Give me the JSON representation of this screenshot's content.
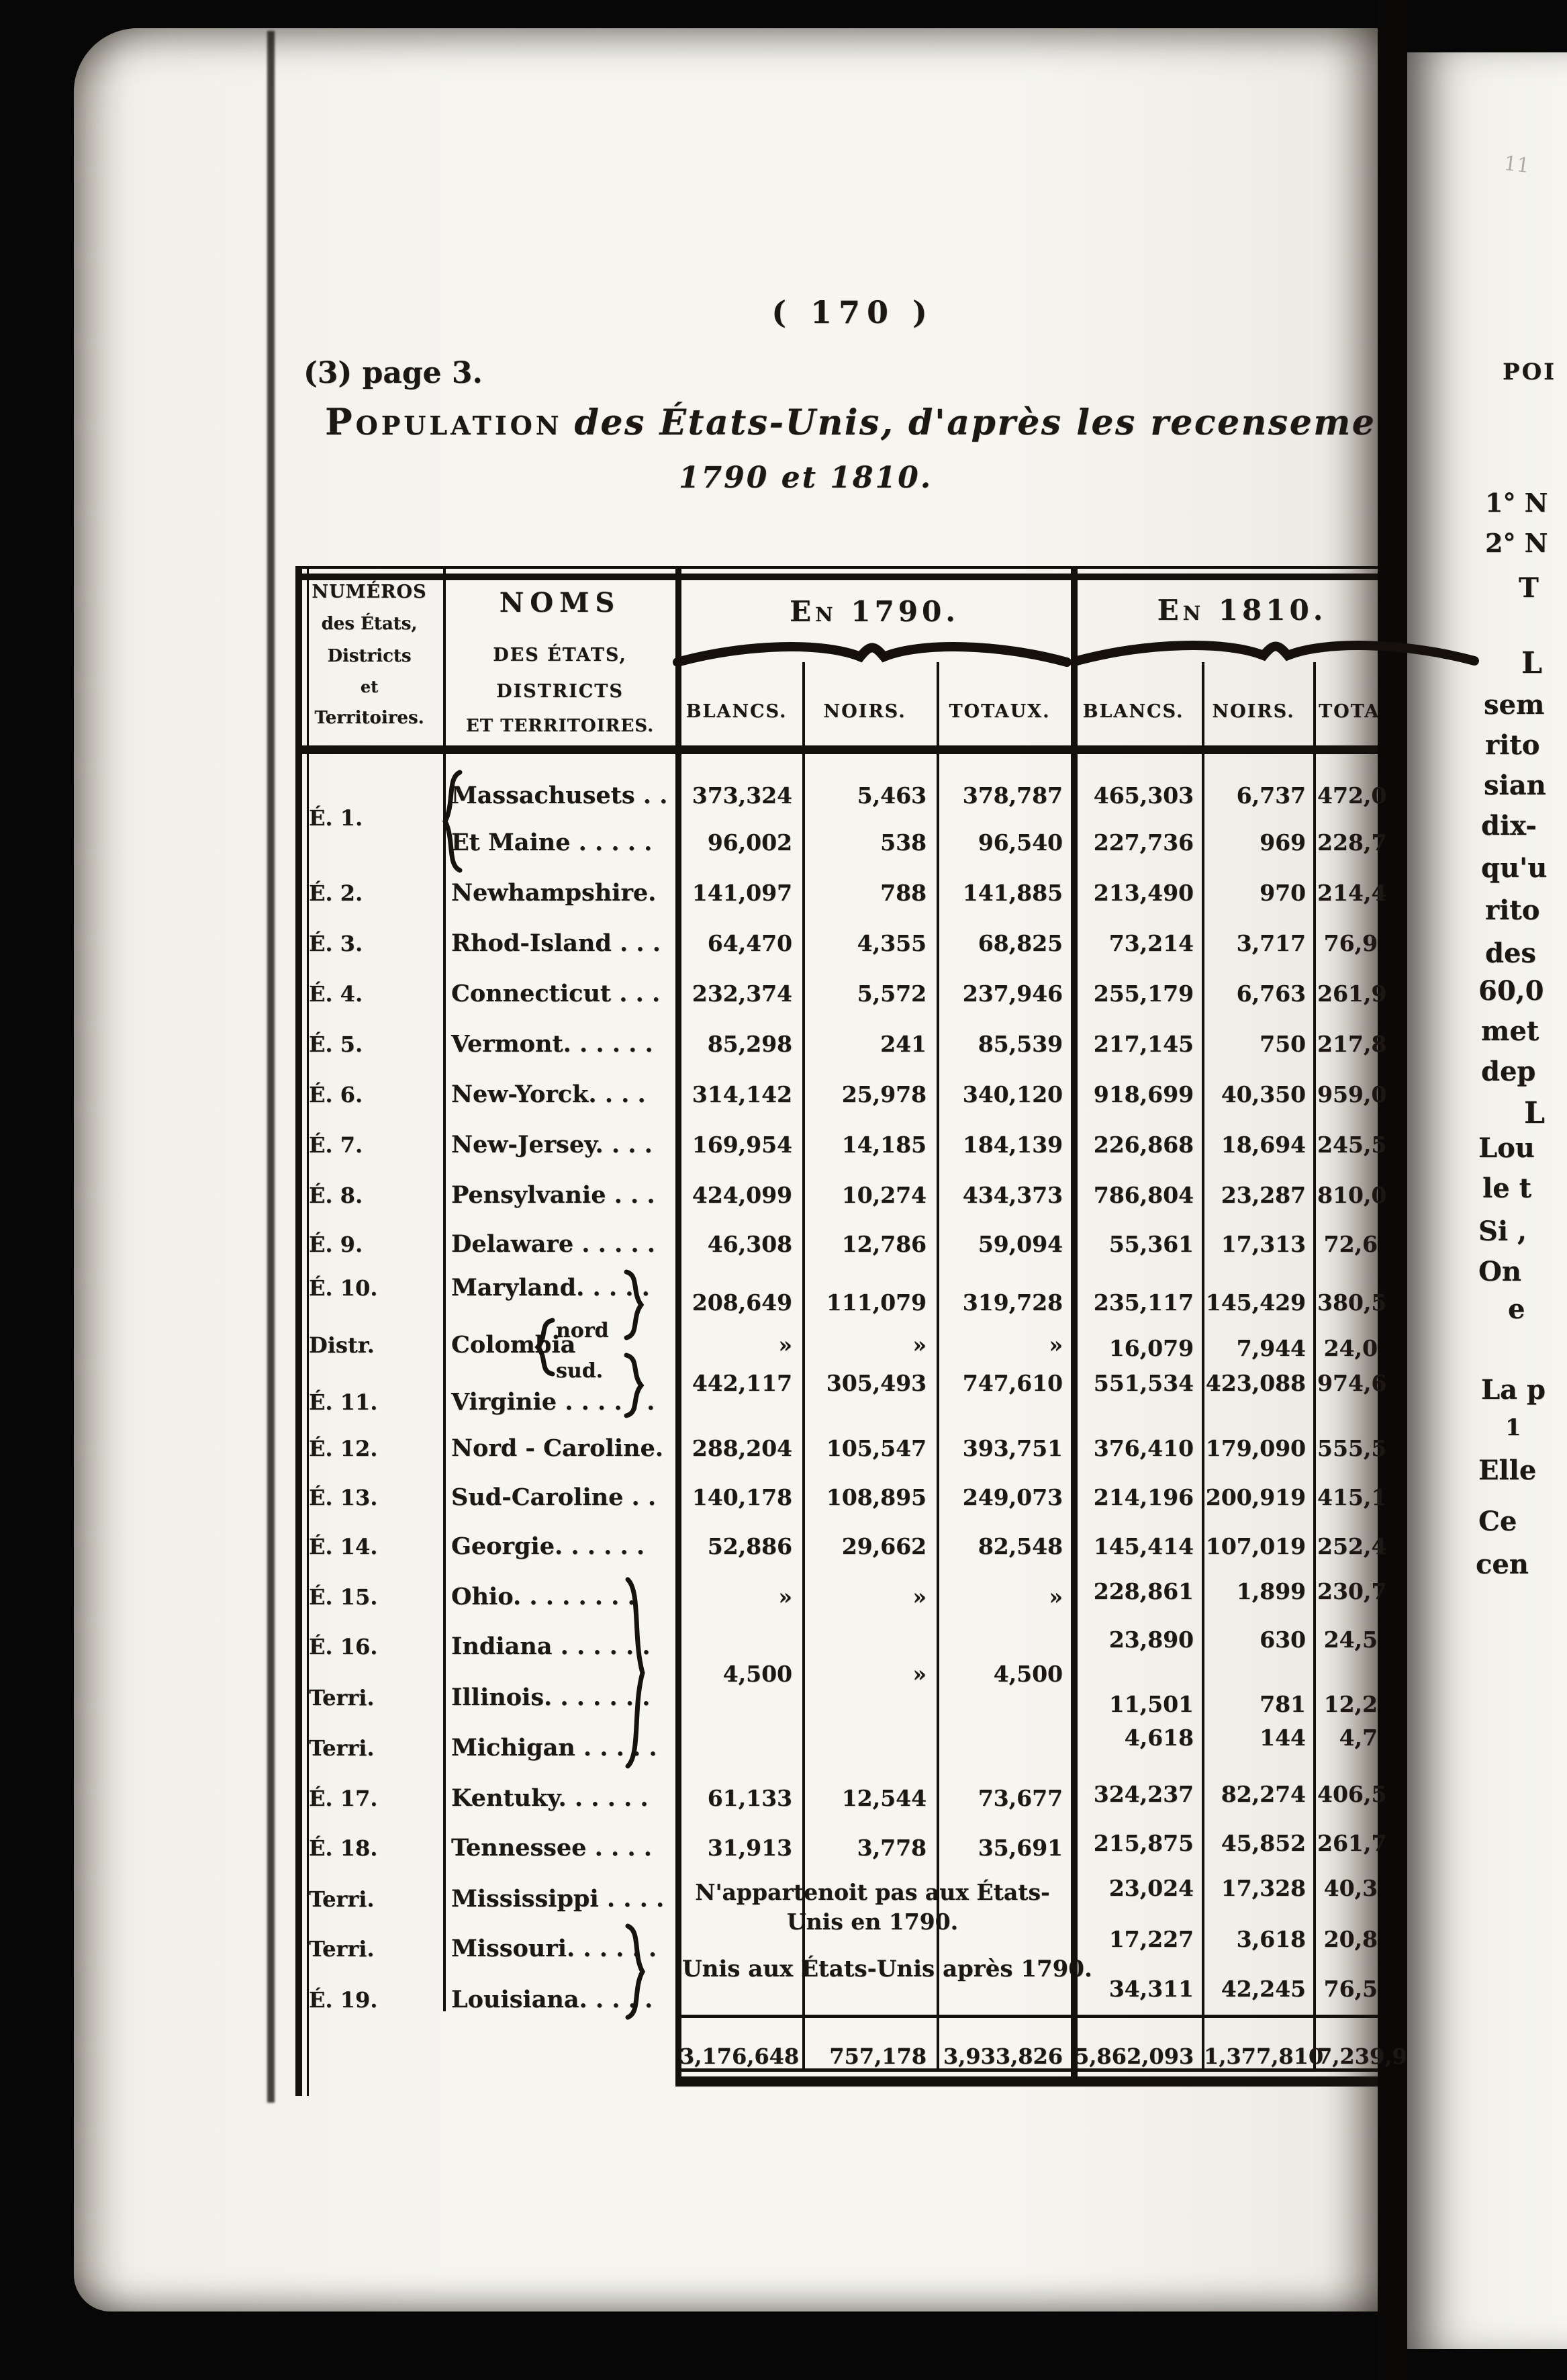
{
  "page_header": {
    "page_number": "( 170 )",
    "note": "(3) page 3.",
    "title_lead": "Population",
    "title_rest": "des États-Unis, d'après les recensements d'octobre",
    "title_line2": "1790 et 1810."
  },
  "table": {
    "col_headers": {
      "numeros_lines": [
        "NUMÉROS",
        "des États,",
        "Districts",
        "et",
        "Territoires."
      ],
      "noms_lines": [
        "NOMS",
        "DES ÉTATS,",
        "DISTRICTS",
        "ET TERRITOIRES."
      ],
      "group_1790": "En 1790.",
      "group_1810": "En 1810.",
      "sub_blancs_1790": "BLANCS.",
      "sub_noirs_1790": "NOIRS.",
      "sub_totaux_1790": "TOTAUX.",
      "sub_blancs_1810": "BLANCS.",
      "sub_noirs_1810": "NOIRS.",
      "sub_totaux_1810": "TOTAUX."
    },
    "rows": [
      {
        "num": "É. 1.",
        "name": "Massachusets . .",
        "b90": "373,324",
        "n90": "5,463",
        "t90": "378,787",
        "b10": "465,303",
        "n10": "6,737",
        "t10": "472,0"
      },
      {
        "num": "",
        "name": "Et Maine . . . . .",
        "b90": "96,002",
        "n90": "538",
        "t90": "96,540",
        "b10": "227,736",
        "n10": "969",
        "t10": "228,7"
      },
      {
        "num": "É. 2.",
        "name": "Newhampshire.",
        "b90": "141,097",
        "n90": "788",
        "t90": "141,885",
        "b10": "213,490",
        "n10": "970",
        "t10": "214,4"
      },
      {
        "num": "É. 3.",
        "name": "Rhod-Island . . .",
        "b90": "64,470",
        "n90": "4,355",
        "t90": "68,825",
        "b10": "73,214",
        "n10": "3,717",
        "t10": "76,9"
      },
      {
        "num": "É. 4.",
        "name": "Connecticut . . .",
        "b90": "232,374",
        "n90": "5,572",
        "t90": "237,946",
        "b10": "255,179",
        "n10": "6,763",
        "t10": "261,9"
      },
      {
        "num": "É. 5.",
        "name": "Vermont. . . . . .",
        "b90": "85,298",
        "n90": "241",
        "t90": "85,539",
        "b10": "217,145",
        "n10": "750",
        "t10": "217,8"
      },
      {
        "num": "É. 6.",
        "name": "New-Yorck. . . .",
        "b90": "314,142",
        "n90": "25,978",
        "t90": "340,120",
        "b10": "918,699",
        "n10": "40,350",
        "t10": "959,0"
      },
      {
        "num": "É. 7.",
        "name": "New-Jersey. . . .",
        "b90": "169,954",
        "n90": "14,185",
        "t90": "184,139",
        "b10": "226,868",
        "n10": "18,694",
        "t10": "245,5"
      },
      {
        "num": "É. 8.",
        "name": "Pensylvanie . . .",
        "b90": "424,099",
        "n90": "10,274",
        "t90": "434,373",
        "b10": "786,804",
        "n10": "23,287",
        "t10": "810,0"
      },
      {
        "num": "É. 9.",
        "name": "Delaware . . . . .",
        "b90": "46,308",
        "n90": "12,786",
        "t90": "59,094",
        "b10": "55,361",
        "n10": "17,313",
        "t10": "72,6"
      },
      {
        "num": "É. 10.",
        "name": "Maryland. . . . .",
        "b90": "208,649",
        "n90": "111,079",
        "t90": "319,728",
        "b10": "235,117",
        "n10": "145,429",
        "t10": "380,5"
      },
      {
        "num": "Distr.",
        "name": "Colombia",
        "sub": [
          "nord",
          "sud."
        ],
        "b90": "»",
        "n90": "»",
        "t90": "»",
        "b10": "16,079",
        "n10": "7,944",
        "t10": "24,0"
      },
      {
        "num": "É. 11.",
        "name": "Virginie . . . . . .",
        "b90": "442,117",
        "n90": "305,493",
        "t90": "747,610",
        "b10": "551,534",
        "n10": "423,088",
        "t10": "974,6"
      },
      {
        "num": "É. 12.",
        "name": "Nord - Caroline.",
        "b90": "288,204",
        "n90": "105,547",
        "t90": "393,751",
        "b10": "376,410",
        "n10": "179,090",
        "t10": "555,5"
      },
      {
        "num": "É. 13.",
        "name": "Sud-Caroline . .",
        "b90": "140,178",
        "n90": "108,895",
        "t90": "249,073",
        "b10": "214,196",
        "n10": "200,919",
        "t10": "415,1"
      },
      {
        "num": "É. 14.",
        "name": "Georgie. . . . . .",
        "b90": "52,886",
        "n90": "29,662",
        "t90": "82,548",
        "b10": "145,414",
        "n10": "107,019",
        "t10": "252,4"
      },
      {
        "num": "É. 15.",
        "name": "Ohio. . . . . . . .",
        "b90": "»",
        "n90": "»",
        "t90": "»",
        "b10": "228,861",
        "n10": "1,899",
        "t10": "230,7"
      },
      {
        "num": "É. 16.",
        "name": "Indiana . . . . . .",
        "b90": "",
        "n90": "",
        "t90": "",
        "b10": "23,890",
        "n10": "630",
        "t10": "24,5"
      },
      {
        "num": "Terri.",
        "name": "Illinois. . . . . . .",
        "b90": "4,500",
        "n90": "»",
        "t90": "4,500",
        "b10": "11,501",
        "n10": "781",
        "t10": "12,2"
      },
      {
        "num": "Terri.",
        "name": "Michigan . . . . .",
        "b90": "",
        "n90": "",
        "t90": "",
        "b10": "4,618",
        "n10": "144",
        "t10": "4,7"
      },
      {
        "num": "É. 17.",
        "name": "Kentuky. . . . . .",
        "b90": "61,133",
        "n90": "12,544",
        "t90": "73,677",
        "b10": "324,237",
        "n10": "82,274",
        "t10": "406,5"
      },
      {
        "num": "É. 18.",
        "name": "Tennessee . . . .",
        "b90": "31,913",
        "n90": "3,778",
        "t90": "35,691",
        "b10": "215,875",
        "n10": "45,852",
        "t10": "261,7"
      },
      {
        "num": "Terri.",
        "name": "Mississippi . . . .",
        "b90": "",
        "n90": "",
        "t90": "",
        "b10": "23,024",
        "n10": "17,328",
        "t10": "40,3"
      },
      {
        "num": "Terri.",
        "name": "Missouri. . . . . .",
        "b90": "",
        "n90": "",
        "t90": "",
        "b10": "17,227",
        "n10": "3,618",
        "t10": "20,8"
      },
      {
        "num": "É. 19.",
        "name": "Louisiana. . . . .",
        "b90": "",
        "n90": "",
        "t90": "",
        "b10": "34,311",
        "n10": "42,245",
        "t10": "76,5"
      }
    ],
    "notes": {
      "line1": "N'appartenoit pas aux États-",
      "line2": "Unis en 1790.",
      "line3": "Unis aux États-Unis après 1790."
    },
    "totals": {
      "b90": "3,176,648",
      "n90": "757,178",
      "t90": "3,933,826",
      "b10": "5,862,093",
      "n10": "1,377,810",
      "t10": "7,239,9"
    }
  },
  "facing_page": {
    "fragments": [
      "POI",
      "1° N",
      "2° N",
      "T",
      "L",
      "sem",
      "rito",
      "sian",
      "dix-",
      "qu'u",
      "rito",
      "des",
      "60,0",
      "met",
      "dep",
      "L",
      "Lou",
      "le t",
      "Si ,",
      "On",
      "e",
      "La p",
      "1",
      "Elle",
      "Ce",
      "cen"
    ],
    "pencil_mark": "11"
  }
}
